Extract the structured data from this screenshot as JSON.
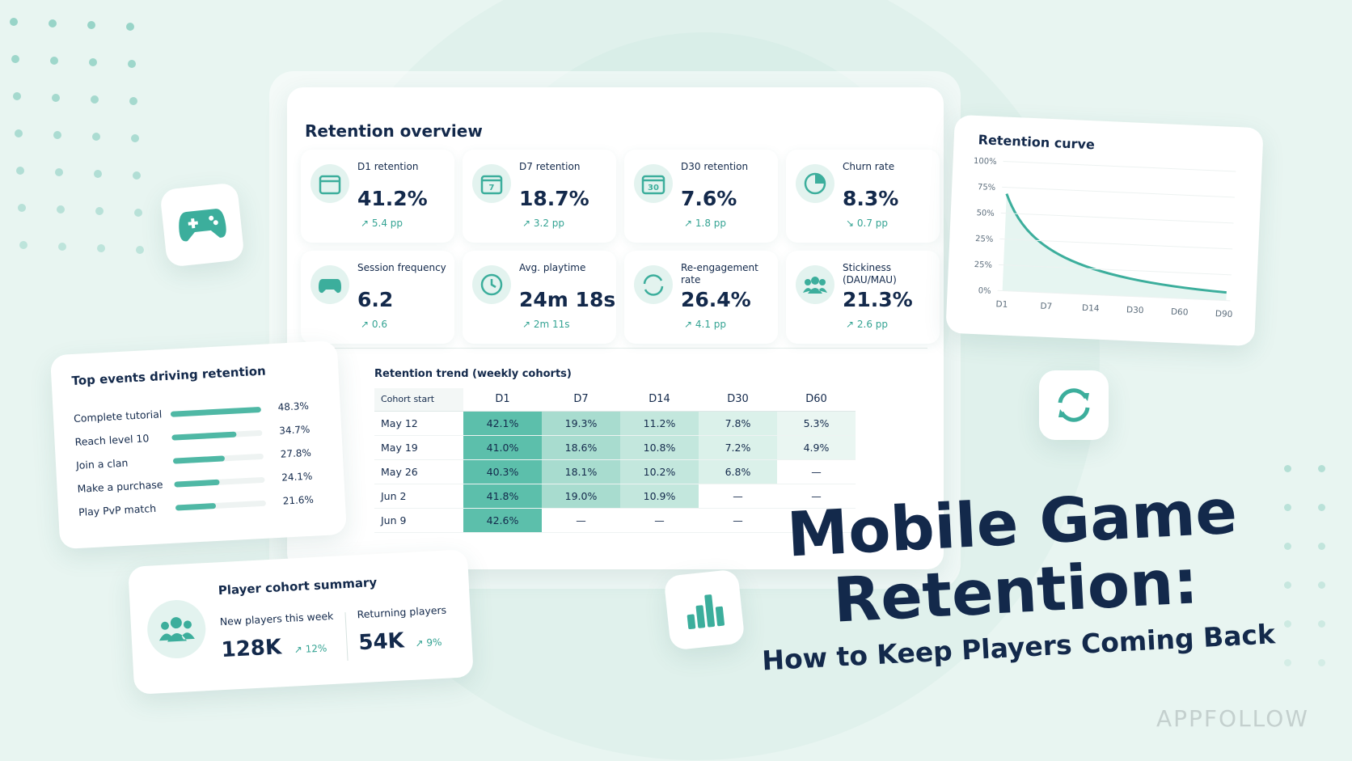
{
  "overview": {
    "title": "Retention overview",
    "kpis": [
      {
        "label": "D1 retention",
        "value": "41.2%",
        "change": "↗ 5.4 pp"
      },
      {
        "label": "D7 retention",
        "icon_label": "7",
        "value": "18.7%",
        "change": "↗ 3.2 pp"
      },
      {
        "label": "D30 retention",
        "icon_label": "30",
        "value": "7.6%",
        "change": "↗ 1.8 pp"
      },
      {
        "label": "Churn rate",
        "value": "8.3%",
        "change": "↘ 0.7 pp"
      },
      {
        "label": "Session frequency",
        "value": "6.2",
        "change": "↗ 0.6"
      },
      {
        "label": "Avg. playtime",
        "value": "24m 18s",
        "change": "↗ 2m 11s"
      },
      {
        "label": "Re-engagement rate",
        "value": "26.4%",
        "change": "↗ 4.1 pp"
      },
      {
        "label": "Stickiness (DAU/MAU)",
        "value": "21.3%",
        "change": "↗ 2.6 pp"
      }
    ]
  },
  "trend_table": {
    "title": "Retention trend (weekly cohorts)",
    "columns": [
      "Cohort start",
      "D1",
      "D7",
      "D14",
      "D30",
      "D60"
    ],
    "rows": [
      [
        "May 12",
        "42.1%",
        "19.3%",
        "11.2%",
        "7.8%",
        "5.3%"
      ],
      [
        "May 19",
        "41.0%",
        "18.6%",
        "10.8%",
        "7.2%",
        "4.9%"
      ],
      [
        "May 26",
        "40.3%",
        "18.1%",
        "10.2%",
        "6.8%",
        "—"
      ],
      [
        "Jun 2",
        "41.8%",
        "19.0%",
        "10.9%",
        "—",
        "—"
      ],
      [
        "Jun 9",
        "42.6%",
        "—",
        "—",
        "—",
        null
      ]
    ]
  },
  "curve": {
    "title": "Retention curve",
    "y_labels": [
      "100%",
      "75%",
      "50%",
      "25%",
      "25%",
      "0%"
    ],
    "x_labels": [
      "D1",
      "D7",
      "D14",
      "D30",
      "D60",
      "D90"
    ]
  },
  "events": {
    "title": "Top events driving retention",
    "items": [
      {
        "label": "Complete tutorial",
        "value": 48.3,
        "value_label": "48.3%"
      },
      {
        "label": "Reach level 10",
        "value": 34.7,
        "value_label": "34.7%"
      },
      {
        "label": "Join a clan",
        "value": 27.8,
        "value_label": "27.8%"
      },
      {
        "label": "Make a purchase",
        "value": 24.1,
        "value_label": "24.1%"
      },
      {
        "label": "Play PvP match",
        "value": 21.6,
        "value_label": "21.6%"
      }
    ]
  },
  "cohort": {
    "title": "Player cohort summary",
    "stats": [
      {
        "label": "New players this week",
        "value": "128K",
        "change": "↗ 12%"
      },
      {
        "label": "Returning players",
        "value": "54K",
        "change": "↗ 9%"
      }
    ]
  },
  "header": {
    "title_lines": [
      "Mobile Game",
      "Retention:"
    ],
    "subtitle": "How to Keep Players Coming Back",
    "brand": "APPFOLLOW"
  }
}
